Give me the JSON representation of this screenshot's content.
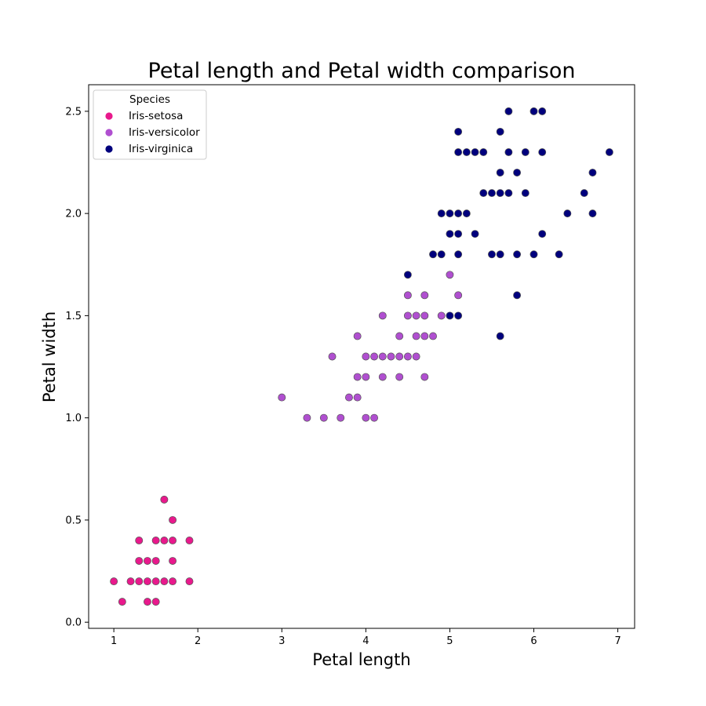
{
  "chart_data": {
    "type": "scatter",
    "title": "Petal length and Petal width comparison",
    "xlabel": "Petal length",
    "ylabel": "Petal width",
    "xlim": [
      0.7,
      7.2
    ],
    "ylim": [
      -0.03,
      2.63
    ],
    "xticks": [
      1,
      2,
      3,
      4,
      5,
      6,
      7
    ],
    "yticks": [
      0.0,
      0.5,
      1.0,
      1.5,
      2.0,
      2.5
    ],
    "ytick_labels": [
      "0.0",
      "0.5",
      "1.0",
      "1.5",
      "2.0",
      "2.5"
    ],
    "grid": false,
    "legend": {
      "title": "Species",
      "position": "top-left"
    },
    "series": [
      {
        "name": "Iris-setosa",
        "color": "#e8198c",
        "points": [
          [
            1.0,
            0.2
          ],
          [
            1.1,
            0.1
          ],
          [
            1.2,
            0.2
          ],
          [
            1.3,
            0.2
          ],
          [
            1.3,
            0.3
          ],
          [
            1.3,
            0.4
          ],
          [
            1.4,
            0.1
          ],
          [
            1.4,
            0.2
          ],
          [
            1.4,
            0.3
          ],
          [
            1.5,
            0.1
          ],
          [
            1.5,
            0.2
          ],
          [
            1.5,
            0.3
          ],
          [
            1.5,
            0.4
          ],
          [
            1.6,
            0.2
          ],
          [
            1.6,
            0.4
          ],
          [
            1.6,
            0.6
          ],
          [
            1.7,
            0.2
          ],
          [
            1.7,
            0.3
          ],
          [
            1.7,
            0.4
          ],
          [
            1.7,
            0.5
          ],
          [
            1.9,
            0.2
          ],
          [
            1.9,
            0.4
          ]
        ]
      },
      {
        "name": "Iris-versicolor",
        "color": "#b04fd0",
        "points": [
          [
            3.0,
            1.1
          ],
          [
            3.3,
            1.0
          ],
          [
            3.5,
            1.0
          ],
          [
            3.6,
            1.3
          ],
          [
            3.7,
            1.0
          ],
          [
            3.8,
            1.1
          ],
          [
            3.9,
            1.1
          ],
          [
            3.9,
            1.2
          ],
          [
            3.9,
            1.4
          ],
          [
            4.0,
            1.0
          ],
          [
            4.0,
            1.2
          ],
          [
            4.0,
            1.3
          ],
          [
            4.1,
            1.0
          ],
          [
            4.1,
            1.3
          ],
          [
            4.2,
            1.2
          ],
          [
            4.2,
            1.3
          ],
          [
            4.2,
            1.5
          ],
          [
            4.3,
            1.3
          ],
          [
            4.4,
            1.2
          ],
          [
            4.4,
            1.3
          ],
          [
            4.4,
            1.4
          ],
          [
            4.5,
            1.3
          ],
          [
            4.5,
            1.5
          ],
          [
            4.5,
            1.6
          ],
          [
            4.6,
            1.3
          ],
          [
            4.6,
            1.4
          ],
          [
            4.6,
            1.5
          ],
          [
            4.7,
            1.2
          ],
          [
            4.7,
            1.4
          ],
          [
            4.7,
            1.5
          ],
          [
            4.7,
            1.6
          ],
          [
            4.8,
            1.4
          ],
          [
            4.9,
            1.5
          ],
          [
            5.0,
            1.7
          ],
          [
            5.1,
            1.6
          ]
        ]
      },
      {
        "name": "Iris-virginica",
        "color": "#00007d",
        "points": [
          [
            4.5,
            1.7
          ],
          [
            4.8,
            1.8
          ],
          [
            4.9,
            1.8
          ],
          [
            4.9,
            2.0
          ],
          [
            5.0,
            1.5
          ],
          [
            5.0,
            1.9
          ],
          [
            5.0,
            2.0
          ],
          [
            5.1,
            1.5
          ],
          [
            5.1,
            1.8
          ],
          [
            5.1,
            1.9
          ],
          [
            5.1,
            2.0
          ],
          [
            5.1,
            2.3
          ],
          [
            5.1,
            2.4
          ],
          [
            5.2,
            2.0
          ],
          [
            5.2,
            2.3
          ],
          [
            5.3,
            1.9
          ],
          [
            5.3,
            2.3
          ],
          [
            5.4,
            2.1
          ],
          [
            5.4,
            2.3
          ],
          [
            5.5,
            1.8
          ],
          [
            5.5,
            2.1
          ],
          [
            5.6,
            1.4
          ],
          [
            5.6,
            1.8
          ],
          [
            5.6,
            2.1
          ],
          [
            5.6,
            2.2
          ],
          [
            5.6,
            2.4
          ],
          [
            5.7,
            2.1
          ],
          [
            5.7,
            2.3
          ],
          [
            5.7,
            2.5
          ],
          [
            5.8,
            1.6
          ],
          [
            5.8,
            1.8
          ],
          [
            5.8,
            2.2
          ],
          [
            5.9,
            2.1
          ],
          [
            5.9,
            2.3
          ],
          [
            6.0,
            1.8
          ],
          [
            6.0,
            2.5
          ],
          [
            6.1,
            1.9
          ],
          [
            6.1,
            2.3
          ],
          [
            6.1,
            2.5
          ],
          [
            6.3,
            1.8
          ],
          [
            6.4,
            2.0
          ],
          [
            6.6,
            2.1
          ],
          [
            6.7,
            2.0
          ],
          [
            6.7,
            2.2
          ],
          [
            6.9,
            2.3
          ]
        ]
      }
    ]
  }
}
